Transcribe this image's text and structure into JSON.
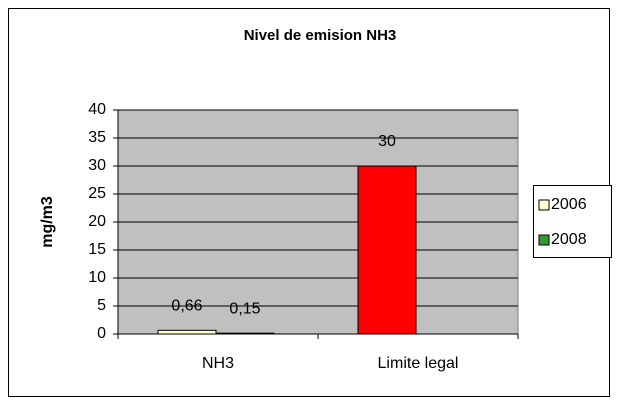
{
  "chart_data": {
    "type": "bar",
    "title": "Nivel de emision NH3",
    "y_label": "mg/m3",
    "categories": [
      "NH3",
      "Limite legal"
    ],
    "series": [
      {
        "name": "2006",
        "color": "#ffffcc",
        "bar_colors": [
          "#ffffcc",
          "#ff0000"
        ],
        "values": [
          0.66,
          30
        ],
        "value_labels": [
          "0,66",
          "30"
        ]
      },
      {
        "name": "2008",
        "color": "#339933",
        "values": [
          0.15,
          null
        ],
        "value_labels": [
          "0,15",
          null
        ]
      }
    ],
    "ylim": [
      0,
      40
    ],
    "yticks": [
      0,
      5,
      10,
      15,
      20,
      25,
      30,
      35,
      40
    ],
    "grid": true,
    "legend": "right"
  }
}
